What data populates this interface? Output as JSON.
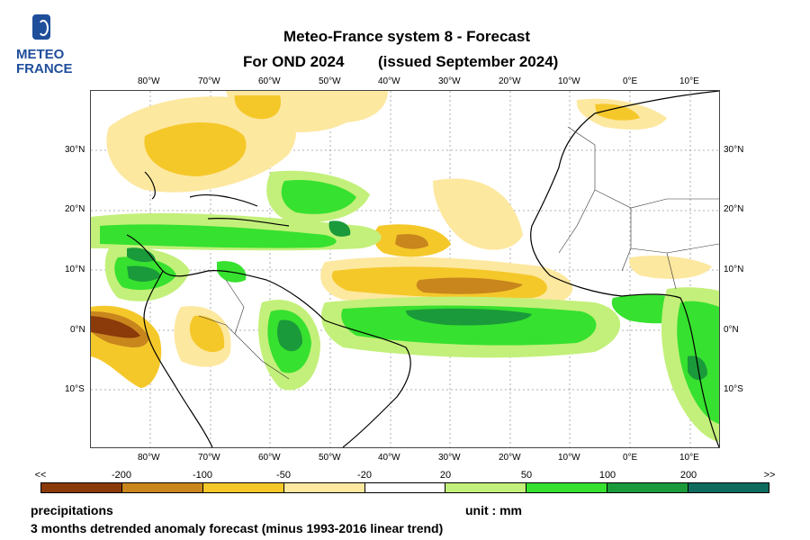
{
  "logo": {
    "line1": "METEO",
    "line2": "FRANCE"
  },
  "title": {
    "line1": "Meteo-France system 8  -  Forecast",
    "period": "For OND 2024",
    "issued": "(issued September 2024)"
  },
  "axes": {
    "lon_labels": [
      "80°W",
      "70°W",
      "60°W",
      "50°W",
      "40°W",
      "30°W",
      "20°W",
      "10°W",
      "0°E",
      "10°E"
    ],
    "lat_labels": [
      "30°N",
      "20°N",
      "10°N",
      "0°N",
      "10°S"
    ]
  },
  "legend": {
    "labels": [
      "<<",
      "-200",
      "-100",
      "-50",
      "-20",
      "20",
      "50",
      "100",
      "200",
      ">>"
    ],
    "colors": [
      "#8b3a0a",
      "#c8861d",
      "#f5c82a",
      "#fde8a0",
      "#ffffff",
      "#c3f07a",
      "#37e12f",
      "#1a9a3a",
      "#0f6b5e"
    ]
  },
  "footer": {
    "variable": "precipitations",
    "unit": "unit : mm",
    "description": "3 months detrended anomaly forecast (minus 1993-2016 linear trend)"
  }
}
